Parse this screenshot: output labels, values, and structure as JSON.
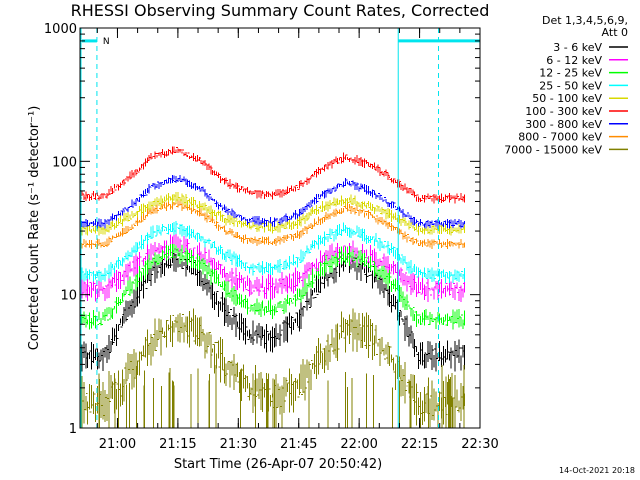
{
  "chart_data": {
    "type": "line",
    "title": "RHESSI Observing Summary Count Rates, Corrected",
    "xlabel": "Start Time (26-Apr-07 20:50:42)",
    "ylabel": "Corrected Count Rate (s⁻¹ detector⁻¹)",
    "yscale": "log",
    "ylim": [
      1,
      1000
    ],
    "xlim_minutes_after_20_50_42": [
      0,
      99.3
    ],
    "y_ticks": [
      {
        "value": 1,
        "label": "1"
      },
      {
        "value": 10,
        "label": "10"
      },
      {
        "value": 100,
        "label": "100"
      },
      {
        "value": 1000,
        "label": "1000"
      }
    ],
    "x_ticks": [
      {
        "minutes": 9.3,
        "label": "21:00"
      },
      {
        "minutes": 24.3,
        "label": "21:15"
      },
      {
        "minutes": 39.3,
        "label": "21:30"
      },
      {
        "minutes": 54.3,
        "label": "21:45"
      },
      {
        "minutes": 69.3,
        "label": "22:00"
      },
      {
        "minutes": 84.3,
        "label": "22:15"
      },
      {
        "minutes": 99.3,
        "label": "22:30"
      }
    ],
    "legend_header": [
      "Det 1,3,4,5,6,9,",
      "Att 0"
    ],
    "time_samples_minutes": [
      0,
      6,
      12,
      18,
      24,
      30,
      36,
      42,
      48,
      54,
      60,
      66,
      72,
      78,
      84,
      90,
      96
    ],
    "series": [
      {
        "name": "3 - 6 keV",
        "color": "#000000",
        "values": [
          3.5,
          3.5,
          8.0,
          15.0,
          18.5,
          14.0,
          7.5,
          5.0,
          4.8,
          6.5,
          13.0,
          18.5,
          15.0,
          9.0,
          3.5,
          3.5,
          3.5
        ]
      },
      {
        "name": "6 - 12 keV",
        "color": "#ff00ff",
        "values": [
          11.0,
          11.0,
          15.0,
          21.0,
          24.0,
          20.0,
          14.0,
          11.5,
          11.3,
          13.0,
          18.0,
          21.5,
          19.0,
          15.0,
          11.0,
          11.0,
          11.0
        ]
      },
      {
        "name": "12 - 25 keV",
        "color": "#00ff00",
        "values": [
          6.5,
          6.5,
          11.0,
          18.0,
          21.0,
          17.0,
          11.0,
          8.0,
          7.8,
          9.5,
          16.0,
          20.0,
          17.0,
          12.0,
          6.5,
          6.5,
          6.5
        ]
      },
      {
        "name": "25 - 50 keV",
        "color": "#00ffff",
        "values": [
          14.0,
          14.0,
          20.0,
          29.0,
          32.0,
          27.0,
          20.0,
          16.0,
          15.5,
          18.0,
          26.0,
          31.0,
          27.0,
          21.0,
          14.0,
          14.0,
          14.0
        ]
      },
      {
        "name": "50 - 100 keV",
        "color": "#d8d800",
        "values": [
          31.0,
          31.0,
          38.0,
          48.0,
          54.0,
          46.0,
          37.0,
          33.0,
          32.0,
          35.0,
          45.0,
          52.0,
          46.0,
          38.0,
          31.0,
          31.0,
          31.0
        ]
      },
      {
        "name": "100 - 300 keV",
        "color": "#ff0000",
        "values": [
          55.0,
          55.0,
          75.0,
          108.0,
          122.0,
          100.0,
          70.0,
          58.0,
          56.0,
          64.0,
          88.0,
          108.0,
          95.0,
          72.0,
          53.0,
          53.0,
          53.0
        ]
      },
      {
        "name": "300 - 800 keV",
        "color": "#0000ff",
        "values": [
          34.0,
          34.0,
          45.0,
          65.0,
          75.0,
          62.0,
          43.0,
          36.0,
          35.0,
          40.0,
          56.0,
          70.0,
          60.0,
          46.0,
          34.0,
          34.0,
          34.0
        ]
      },
      {
        "name": "800 - 7000 keV",
        "color": "#ff8c00",
        "values": [
          24.0,
          24.0,
          31.0,
          43.0,
          48.0,
          41.0,
          30.0,
          25.5,
          25.0,
          28.0,
          37.0,
          45.0,
          40.0,
          31.0,
          24.0,
          24.0,
          24.0
        ]
      },
      {
        "name": "7000 - 15000 keV",
        "color": "#808000",
        "values": [
          1.5,
          1.5,
          2.5,
          4.5,
          6.0,
          5.0,
          3.0,
          2.0,
          1.7,
          2.0,
          3.5,
          5.5,
          5.0,
          3.0,
          1.5,
          1.5,
          1.5
        ]
      }
    ],
    "annotations": {
      "night_marker_label": "N",
      "night_start_minutes": 4.2,
      "night_end_minutes": 79.0,
      "marker_intervals": [
        [
          -1,
          4.2
        ],
        [
          79.0,
          99.3
        ]
      ],
      "marker_level": 800,
      "vertical_markers_minutes": [
        0,
        4.2,
        79.0,
        89.0
      ]
    },
    "generated_stamp": "14-Oct-2021 20:18"
  },
  "colors": {
    "axes": "#000000",
    "markers": "#00e5ee"
  }
}
